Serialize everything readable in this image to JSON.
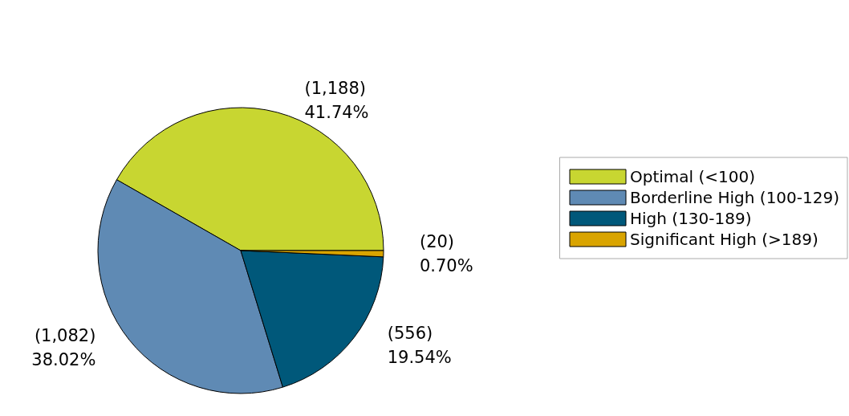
{
  "chart_data": {
    "type": "pie",
    "categories": [
      "Optimal (<100)",
      "Borderline High (100-129)",
      "High (130-189)",
      "Significant High (>189)"
    ],
    "values": [
      1188,
      1082,
      556,
      20
    ],
    "value_labels": [
      "(1,188)\n41.74%",
      "(1,082)\n38.02%",
      "(556)\n19.54%",
      "(20)\n0.70%"
    ],
    "colors": [
      "#c8d631",
      "#5f8ab4",
      "#00587a",
      "#d9a400"
    ],
    "legend": "right"
  }
}
